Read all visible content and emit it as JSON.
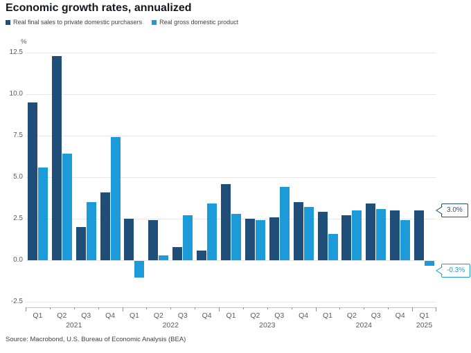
{
  "header": {
    "title": "Economic growth rates, annualized"
  },
  "legend": {
    "items": [
      {
        "label": "Real final sales to private domestic purchasers",
        "color": "#1f4e79"
      },
      {
        "label": "Real gross domestic product",
        "color": "#1d9bd9"
      }
    ]
  },
  "axes": {
    "y_unit": "%"
  },
  "footer": {
    "source": "Source: Macrobond, U.S. Bureau of Economic Analysis (BEA)"
  },
  "chart_data": {
    "type": "bar",
    "title": "Economic growth rates, annualized",
    "ylabel": "%",
    "ylim": [
      -3.0,
      12.7
    ],
    "grid": "horizontal",
    "legend_position": "top-left",
    "y_ticks": [
      {
        "value": 12.5,
        "label": "12.5"
      },
      {
        "value": 10.0,
        "label": "10.0"
      },
      {
        "value": 7.5,
        "label": "7.5"
      },
      {
        "value": 5.0,
        "label": "5.0"
      },
      {
        "value": 2.5,
        "label": "2.5"
      },
      {
        "value": 0.0,
        "label": "0.0"
      },
      {
        "value": -2.5,
        "label": "-2.5"
      }
    ],
    "categories": [
      "Q1",
      "Q2",
      "Q3",
      "Q4",
      "Q1",
      "Q2",
      "Q3",
      "Q4",
      "Q1",
      "Q2",
      "Q3",
      "Q4",
      "Q1",
      "Q2",
      "Q3",
      "Q4",
      "Q1"
    ],
    "year_groups": [
      {
        "label": "2021",
        "from": 0,
        "to": 3
      },
      {
        "label": "2022",
        "from": 4,
        "to": 7
      },
      {
        "label": "2023",
        "from": 8,
        "to": 11
      },
      {
        "label": "2024",
        "from": 12,
        "to": 15
      },
      {
        "label": "2025",
        "from": 16,
        "to": 16
      }
    ],
    "series": [
      {
        "name": "Real final sales to private domestic purchasers",
        "color": "#1f4e79",
        "values": [
          9.5,
          12.3,
          2.0,
          4.1,
          2.5,
          2.4,
          0.8,
          0.6,
          4.6,
          2.5,
          2.6,
          3.5,
          2.9,
          2.7,
          3.4,
          3.0,
          3.0
        ]
      },
      {
        "name": "Real gross domestic product",
        "color": "#1d9bd9",
        "values": [
          5.6,
          6.4,
          3.5,
          7.4,
          -1.0,
          0.3,
          2.7,
          3.4,
          2.8,
          2.4,
          4.4,
          3.2,
          1.6,
          3.0,
          3.1,
          2.4,
          -0.3
        ]
      }
    ],
    "annotations": [
      {
        "text": "3.0%",
        "value": 3.0,
        "series": 0,
        "color": "#1f4e79"
      },
      {
        "text": "-0.3%",
        "value": -0.3,
        "series": 1,
        "color": "#1d9bd9"
      }
    ]
  }
}
